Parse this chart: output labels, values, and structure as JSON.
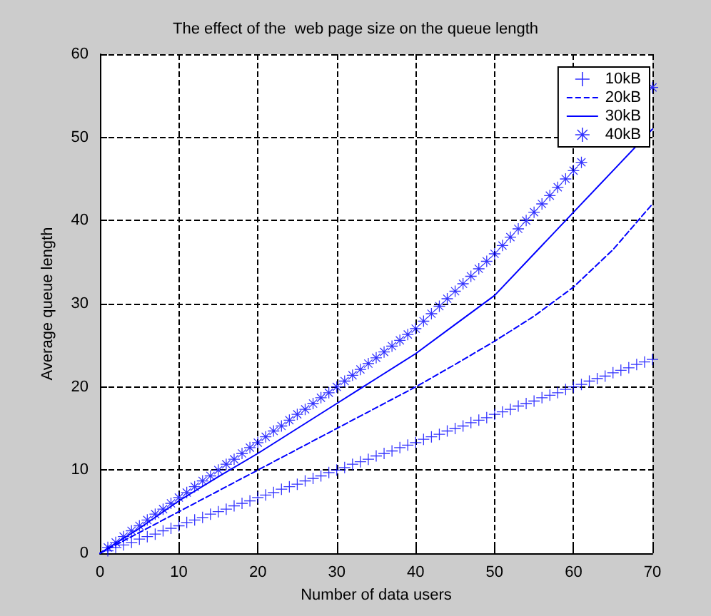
{
  "chart_data": {
    "type": "line",
    "title": "The effect of the  web page size on the queue length",
    "xlabel": "Number of data users",
    "ylabel": "Average queue length",
    "xlim": [
      0,
      70
    ],
    "xticks": [
      0,
      10,
      20,
      30,
      40,
      50,
      60,
      70
    ],
    "ylim": [
      0,
      60
    ],
    "yticks": [
      0,
      10,
      20,
      30,
      40,
      50,
      60
    ],
    "grid": true,
    "legend": "top right",
    "series": [
      {
        "name": "10kB",
        "type": "scatter",
        "color": "#0000ff",
        "marker": "cross",
        "x": [
          1,
          2,
          3,
          4,
          5,
          6,
          7,
          8,
          9,
          10,
          11,
          12,
          13,
          14,
          15,
          16,
          17,
          18,
          19,
          20,
          21,
          22,
          23,
          24,
          25,
          26,
          27,
          28,
          29,
          30,
          31,
          32,
          33,
          34,
          35,
          36,
          37,
          38,
          39,
          40,
          41,
          42,
          43,
          44,
          45,
          46,
          47,
          48,
          49,
          50,
          51,
          52,
          53,
          54,
          55,
          56,
          57,
          58,
          59,
          60,
          61,
          62,
          63,
          64,
          65,
          66,
          67,
          68,
          69,
          70
        ],
        "values": [
          0.3,
          0.7,
          1,
          1.3,
          1.7,
          2,
          2.3,
          2.7,
          3,
          3.3,
          3.7,
          4,
          4.3,
          4.7,
          5,
          5.3,
          5.7,
          6,
          6.3,
          6.7,
          7,
          7.3,
          7.7,
          8,
          8.3,
          8.7,
          9,
          9.3,
          9.7,
          10,
          10.3,
          10.7,
          11,
          11.3,
          11.7,
          12,
          12.3,
          12.7,
          13,
          13.3,
          13.7,
          14,
          14.3,
          14.7,
          15,
          15.3,
          15.7,
          16,
          16.3,
          16.7,
          17,
          17.3,
          17.7,
          18,
          18.3,
          18.7,
          19,
          19.3,
          19.7,
          20,
          20.3,
          20.7,
          21,
          21.3,
          21.7,
          22,
          22.3,
          22.7,
          23,
          23.3
        ]
      },
      {
        "name": "20kB",
        "color": "#0000ff",
        "marker": "none",
        "line_style": "dashed",
        "x": [
          0,
          5,
          10,
          15,
          20,
          25,
          30,
          35,
          40,
          45,
          50,
          55,
          60,
          65,
          70
        ],
        "values": [
          0,
          2.5,
          5,
          7.5,
          10,
          12.5,
          15,
          17.5,
          20,
          22.7,
          25.5,
          28.5,
          32,
          36.5,
          42
        ]
      },
      {
        "name": "30kB",
        "color": "#0000ff",
        "marker": "none",
        "line_style": "solid",
        "x": [
          0,
          5,
          10,
          15,
          20,
          25,
          30,
          35,
          40,
          45,
          50,
          55,
          60,
          65,
          70
        ],
        "values": [
          0,
          3,
          6.3,
          9.2,
          12,
          15,
          18,
          21,
          24,
          27.5,
          31,
          36,
          41,
          46,
          51
        ]
      },
      {
        "name": "40kB",
        "type": "scatter",
        "color": "#0000ff",
        "marker": "star",
        "x": [
          1,
          2,
          3,
          4,
          5,
          6,
          7,
          8,
          9,
          10,
          11,
          12,
          13,
          14,
          15,
          16,
          17,
          18,
          19,
          20,
          21,
          22,
          23,
          24,
          25,
          26,
          27,
          28,
          29,
          30,
          31,
          32,
          33,
          34,
          35,
          36,
          37,
          38,
          39,
          40,
          41,
          42,
          43,
          44,
          45,
          46,
          47,
          48,
          49,
          50,
          51,
          52,
          53,
          54,
          55,
          56,
          57,
          58,
          59,
          60,
          61,
          62,
          63,
          64,
          65,
          66,
          67,
          68,
          69,
          70
        ],
        "values": [
          0.7,
          1.3,
          2,
          2.7,
          3.3,
          4,
          4.7,
          5.3,
          6,
          6.7,
          7.3,
          8,
          8.7,
          9.3,
          10,
          10.7,
          11.3,
          12,
          12.7,
          13.3,
          14,
          14.7,
          15.3,
          16,
          16.7,
          17.3,
          18,
          18.7,
          19.3,
          20,
          20.7,
          21.4,
          22.1,
          22.8,
          23.5,
          24.2,
          24.9,
          25.6,
          26.3,
          27,
          27.9,
          28.8,
          29.7,
          30.6,
          31.5,
          32.4,
          33.3,
          34.2,
          35.1,
          36,
          37,
          38,
          39,
          40,
          41,
          42,
          43,
          44,
          45,
          46,
          47,
          null,
          null,
          null,
          null,
          null,
          null,
          null,
          null,
          56
        ]
      }
    ]
  }
}
